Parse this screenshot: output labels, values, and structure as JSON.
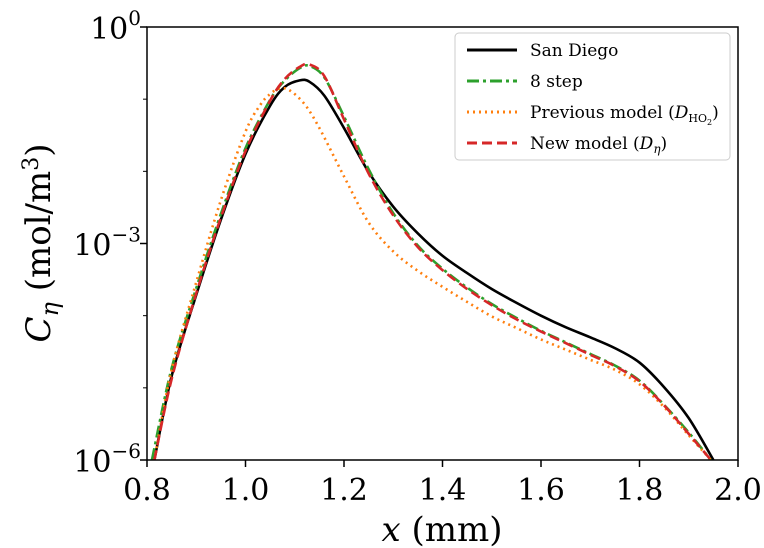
{
  "chart_data": {
    "type": "line",
    "xlabel": "x (mm)",
    "ylabel": "Cη (mol/m³)",
    "xlim": [
      0.8,
      2.0
    ],
    "ylim": [
      1e-06,
      1
    ],
    "yscale": "log",
    "xticks": [
      0.8,
      1.0,
      1.2,
      1.4,
      1.6,
      1.8,
      2.0
    ],
    "xtick_labels": [
      "0.8",
      "1.0",
      "1.2",
      "1.4",
      "1.6",
      "1.8",
      "2.0"
    ],
    "yticks": [
      {
        "value": 1e-06,
        "base": "10",
        "exp": "−6"
      },
      {
        "value": 0.001,
        "base": "10",
        "exp": "−3"
      },
      {
        "value": 1,
        "base": "10",
        "exp": "0"
      }
    ],
    "grid": false,
    "legend_position": "top-right",
    "series": [
      {
        "name": "San Diego",
        "color": "#000000",
        "style": "solid",
        "x": [
          0.815,
          0.85,
          0.9,
          0.95,
          1.0,
          1.05,
          1.08,
          1.11,
          1.13,
          1.16,
          1.2,
          1.25,
          1.3,
          1.35,
          1.4,
          1.45,
          1.5,
          1.55,
          1.6,
          1.65,
          1.7,
          1.75,
          1.8,
          1.85,
          1.9,
          1.95
        ],
        "y": [
          1e-06,
          1.45e-05,
          0.000194,
          0.00214,
          0.0174,
          0.0813,
          0.148,
          0.182,
          0.174,
          0.112,
          0.0398,
          0.00977,
          0.00324,
          0.00138,
          0.000676,
          0.000389,
          0.000234,
          0.000151,
          0.0001,
          6.92e-05,
          5.01e-05,
          3.55e-05,
          2.24e-05,
          1.02e-05,
          3.8e-06,
          1e-06
        ]
      },
      {
        "name": "8 step",
        "color": "#2ca02c",
        "style": "dashdot",
        "x": [
          0.81,
          0.85,
          0.9,
          0.95,
          1.0,
          1.05,
          1.08,
          1.11,
          1.13,
          1.16,
          1.2,
          1.25,
          1.3,
          1.35,
          1.4,
          1.45,
          1.5,
          1.55,
          1.6,
          1.65,
          1.7,
          1.75,
          1.8,
          1.85,
          1.9,
          1.945
        ],
        "y": [
          1e-06,
          1.86e-05,
          0.00024,
          0.00257,
          0.0209,
          0.0977,
          0.182,
          0.269,
          0.288,
          0.2,
          0.0575,
          0.0107,
          0.00263,
          0.000933,
          0.000447,
          0.000245,
          0.000145,
          9.33e-05,
          6.17e-05,
          4.27e-05,
          2.95e-05,
          2.04e-05,
          1.26e-05,
          5.8e-06,
          2.4e-06,
          1e-06
        ]
      },
      {
        "name": "Previous model (D_HO₂)",
        "color": "#ff7f0e",
        "style": "dotted",
        "x": [
          0.815,
          0.85,
          0.9,
          0.95,
          1.0,
          1.03,
          1.05,
          1.07,
          1.09,
          1.12,
          1.15,
          1.2,
          1.25,
          1.3,
          1.35,
          1.4,
          1.45,
          1.5,
          1.55,
          1.6,
          1.65,
          1.7,
          1.75,
          1.8,
          1.85,
          1.9,
          1.945
        ],
        "y": [
          1e-06,
          1.78e-05,
          0.00029,
          0.00398,
          0.0355,
          0.0832,
          0.118,
          0.141,
          0.132,
          0.0851,
          0.0398,
          0.00851,
          0.00195,
          0.000776,
          0.000417,
          0.000251,
          0.000155,
          9.77e-05,
          6.76e-05,
          4.68e-05,
          3.39e-05,
          2.45e-05,
          1.78e-05,
          1.12e-05,
          5.4e-06,
          2.2e-06,
          1e-06
        ]
      },
      {
        "name": "New model (D_η)",
        "color": "#d62728",
        "style": "dashed",
        "x": [
          0.815,
          0.85,
          0.9,
          0.95,
          1.0,
          1.05,
          1.08,
          1.11,
          1.13,
          1.16,
          1.2,
          1.25,
          1.3,
          1.35,
          1.4,
          1.45,
          1.5,
          1.55,
          1.6,
          1.65,
          1.7,
          1.75,
          1.8,
          1.85,
          1.9,
          1.945
        ],
        "y": [
          1e-06,
          1.32e-05,
          0.000204,
          0.00229,
          0.0191,
          0.0955,
          0.191,
          0.28,
          0.302,
          0.209,
          0.0525,
          0.00933,
          0.00245,
          0.000891,
          0.000427,
          0.000234,
          0.00014,
          8.91e-05,
          6.03e-05,
          4.17e-05,
          2.88e-05,
          2e-05,
          1.23e-05,
          5.7e-06,
          2.3e-06,
          1e-06
        ]
      }
    ]
  }
}
